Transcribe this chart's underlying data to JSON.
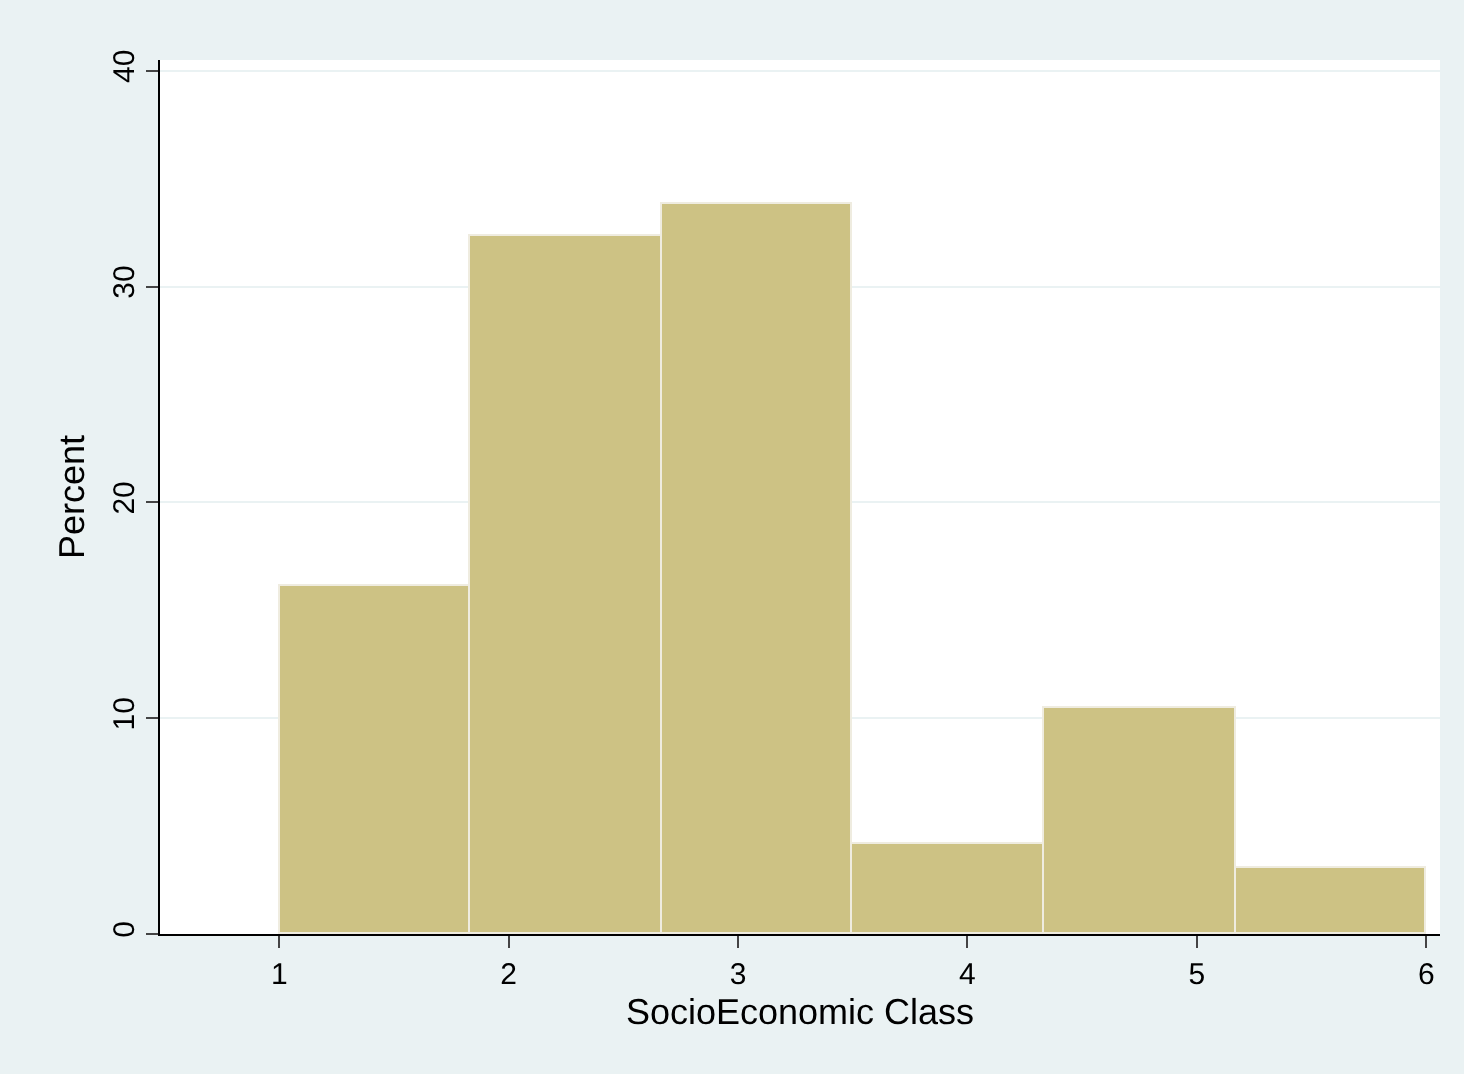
{
  "chart_data": {
    "type": "histogram",
    "xlabel": "SocioEconomic Class",
    "ylabel": "Percent",
    "bins": [
      1,
      1.833,
      2.667,
      3.5,
      4.333,
      5.167,
      6
    ],
    "values": [
      16.1,
      32.3,
      33.8,
      4.2,
      10.5,
      3.1
    ],
    "color": "#cdc284",
    "xlim": [
      0.48,
      6.06
    ],
    "xticks": [
      1,
      2,
      3,
      4,
      5,
      6
    ],
    "ylim": [
      0,
      40.5
    ],
    "yticks": [
      0,
      10,
      20,
      30,
      40
    ],
    "grid": "y"
  }
}
